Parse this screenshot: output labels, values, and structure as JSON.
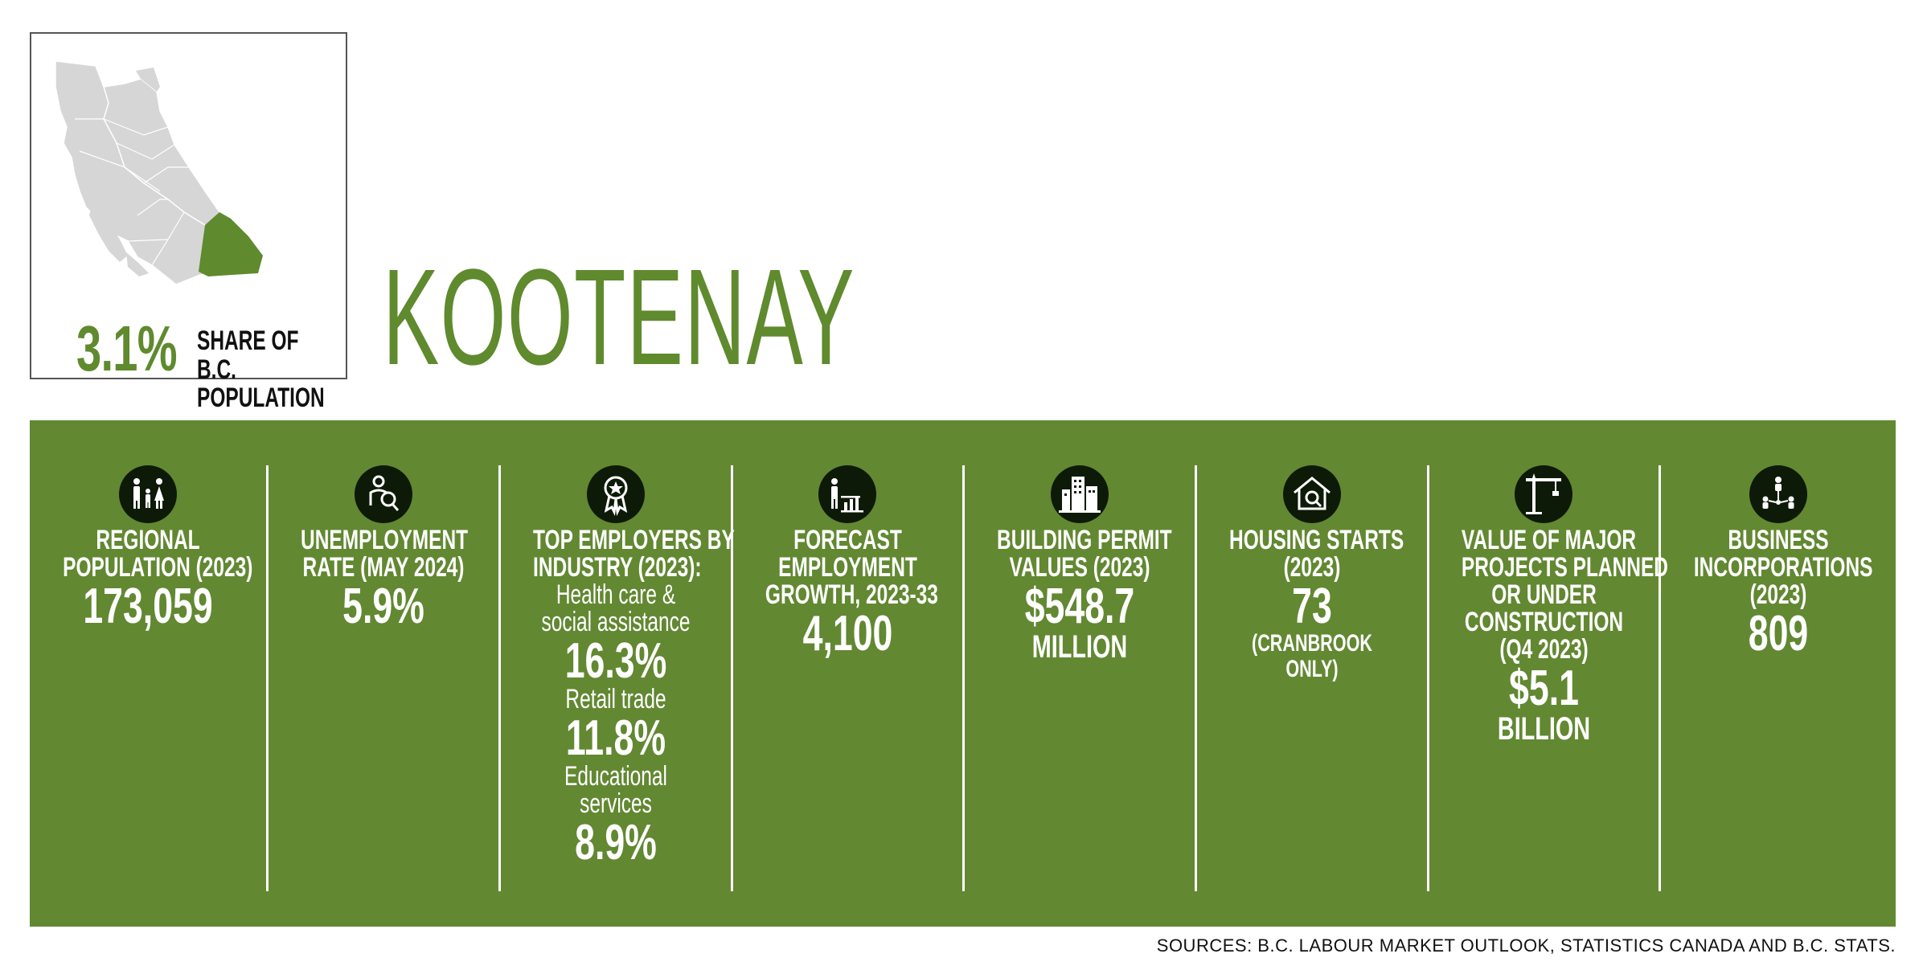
{
  "map": {
    "share_percent": "3.1%",
    "share_label_line1": "SHARE OF B.C.",
    "share_label_line2": "POPULATION",
    "highlight_color": "#5f8a2e",
    "base_color": "#d6d6d6"
  },
  "region_title": "KOOTENAY",
  "colors": {
    "band": "#628832",
    "icon_circle": "#0e1a08"
  },
  "stats": [
    {
      "icon": "family-icon",
      "label_lines": [
        "REGIONAL",
        "POPULATION (2023)"
      ],
      "value": "173,059"
    },
    {
      "icon": "job-search-icon",
      "label_lines": [
        "UNEMPLOYMENT",
        "RATE (MAY 2024)"
      ],
      "value": "5.9%"
    },
    {
      "icon": "award-ribbon-icon",
      "label_lines": [
        "TOP EMPLOYERS BY",
        "INDUSTRY (2023):"
      ],
      "industries": [
        {
          "name_lines": [
            "Health care &",
            "social assistance"
          ],
          "value": "16.3%"
        },
        {
          "name_lines": [
            "Retail trade"
          ],
          "value": "11.8%"
        },
        {
          "name_lines": [
            "Educational",
            "services"
          ],
          "value": "8.9%"
        }
      ]
    },
    {
      "icon": "growth-chart-icon",
      "label_lines": [
        "FORECAST",
        "EMPLOYMENT",
        "GROWTH, 2023-33"
      ],
      "value": "4,100"
    },
    {
      "icon": "buildings-icon",
      "label_lines": [
        "BUILDING PERMIT",
        "VALUES (2023)"
      ],
      "value": "$548.7",
      "unit": "MILLION"
    },
    {
      "icon": "house-search-icon",
      "label_lines": [
        "HOUSING STARTS",
        "(2023)"
      ],
      "value": "73",
      "note_lines": [
        "(CRANBROOK",
        "ONLY)"
      ]
    },
    {
      "icon": "construction-crane-icon",
      "label_lines": [
        "VALUE OF MAJOR",
        "PROJECTS PLANNED",
        "OR UNDER",
        "CONSTRUCTION",
        "(Q4 2023)"
      ],
      "value": "$5.1",
      "unit": "BILLION"
    },
    {
      "icon": "business-network-icon",
      "label_lines": [
        "BUSINESS",
        "INCORPORATIONS",
        "(2023)"
      ],
      "value": "809"
    }
  ],
  "sources": "SOURCES: B.C. LABOUR MARKET OUTLOOK, STATISTICS CANADA AND B.C. STATS."
}
